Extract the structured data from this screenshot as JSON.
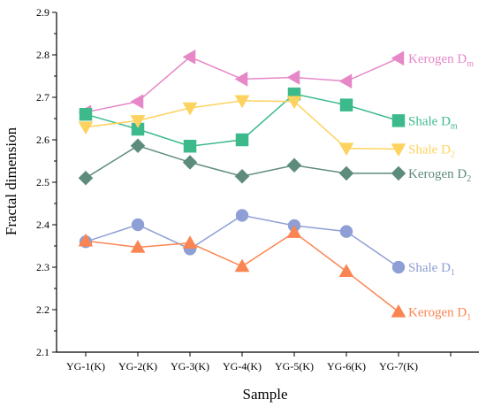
{
  "chart_data": {
    "type": "line",
    "xlabel": "Sample",
    "ylabel": "Fractal dimension",
    "categories": [
      "YG-1(K)",
      "YG-2(K)",
      "YG-3(K)",
      "YG-4(K)",
      "YG-5(K)",
      "YG-6(K)",
      "YG-7(K)"
    ],
    "ylim": [
      2.1,
      2.9
    ],
    "yticks": [
      "2.1",
      "2.2",
      "2.3",
      "2.4",
      "2.5",
      "2.6",
      "2.7",
      "2.8",
      "2.9"
    ],
    "grid": false,
    "legend": "inline labels at right end of each series",
    "series": [
      {
        "name": "Kerogen Dm",
        "label_main": "Kerogen D",
        "label_sub": "m",
        "marker": "triangle-left",
        "color": "#e687c8",
        "values": [
          2.665,
          2.69,
          2.795,
          2.743,
          2.747,
          2.738,
          2.792
        ]
      },
      {
        "name": "Shale Dm",
        "label_main": "Shale D",
        "label_sub": "m",
        "marker": "square",
        "color": "#3cba8c",
        "values": [
          2.66,
          2.625,
          2.585,
          2.6,
          2.708,
          2.682,
          2.645
        ]
      },
      {
        "name": "Shale D2",
        "label_main": "Shale D",
        "label_sub": "2",
        "marker": "triangle-down",
        "color": "#fed25e",
        "values": [
          2.63,
          2.645,
          2.675,
          2.692,
          2.69,
          2.58,
          2.578
        ]
      },
      {
        "name": "Kerogen D2",
        "label_main": "Kerogen D",
        "label_sub": "2",
        "marker": "diamond",
        "color": "#5e8c7c",
        "values": [
          2.51,
          2.586,
          2.547,
          2.514,
          2.54,
          2.521,
          2.521
        ]
      },
      {
        "name": "Shale D1",
        "label_main": "Shale D",
        "label_sub": "1",
        "marker": "circle",
        "color": "#8d9fd4",
        "values": [
          2.36,
          2.4,
          2.343,
          2.422,
          2.398,
          2.384,
          2.3
        ]
      },
      {
        "name": "Kerogen D1",
        "label_main": "Kerogen D",
        "label_sub": "1",
        "marker": "triangle-up",
        "color": "#fb8552",
        "values": [
          2.362,
          2.347,
          2.357,
          2.302,
          2.382,
          2.29,
          2.195
        ]
      }
    ]
  }
}
